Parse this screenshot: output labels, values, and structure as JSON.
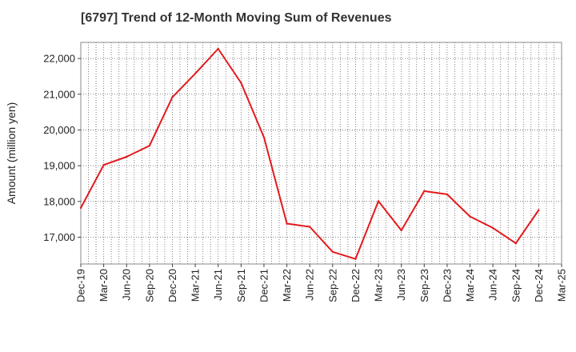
{
  "chart_data": {
    "type": "line",
    "title": "[6797]  Trend of 12-Month Moving Sum of Revenues",
    "ylabel": "Amount (million yen)",
    "xlabel": "",
    "ylim": [
      16250,
      22450
    ],
    "yticks": [
      17000,
      18000,
      19000,
      20000,
      21000,
      22000
    ],
    "ytick_labels": [
      "17,000",
      "18,000",
      "19,000",
      "20,000",
      "21,000",
      "22,000"
    ],
    "categories": [
      "Dec-19",
      "Mar-20",
      "Jun-20",
      "Sep-20",
      "Dec-20",
      "Mar-21",
      "Jun-21",
      "Sep-21",
      "Dec-21",
      "Mar-22",
      "Jun-22",
      "Sep-22",
      "Dec-22",
      "Mar-23",
      "Jun-23",
      "Sep-23",
      "Dec-23",
      "Mar-24",
      "Jun-24",
      "Sep-24",
      "Dec-24",
      "Mar-25"
    ],
    "grid": true,
    "series": [
      {
        "color": "#e31a1c",
        "values": [
          17820,
          19020,
          19250,
          19560,
          20920,
          21580,
          22270,
          21320,
          19790,
          17380,
          17290,
          16590,
          16390,
          18010,
          17190,
          18290,
          18200,
          17580,
          17260,
          16830,
          17760,
          null
        ]
      }
    ]
  }
}
